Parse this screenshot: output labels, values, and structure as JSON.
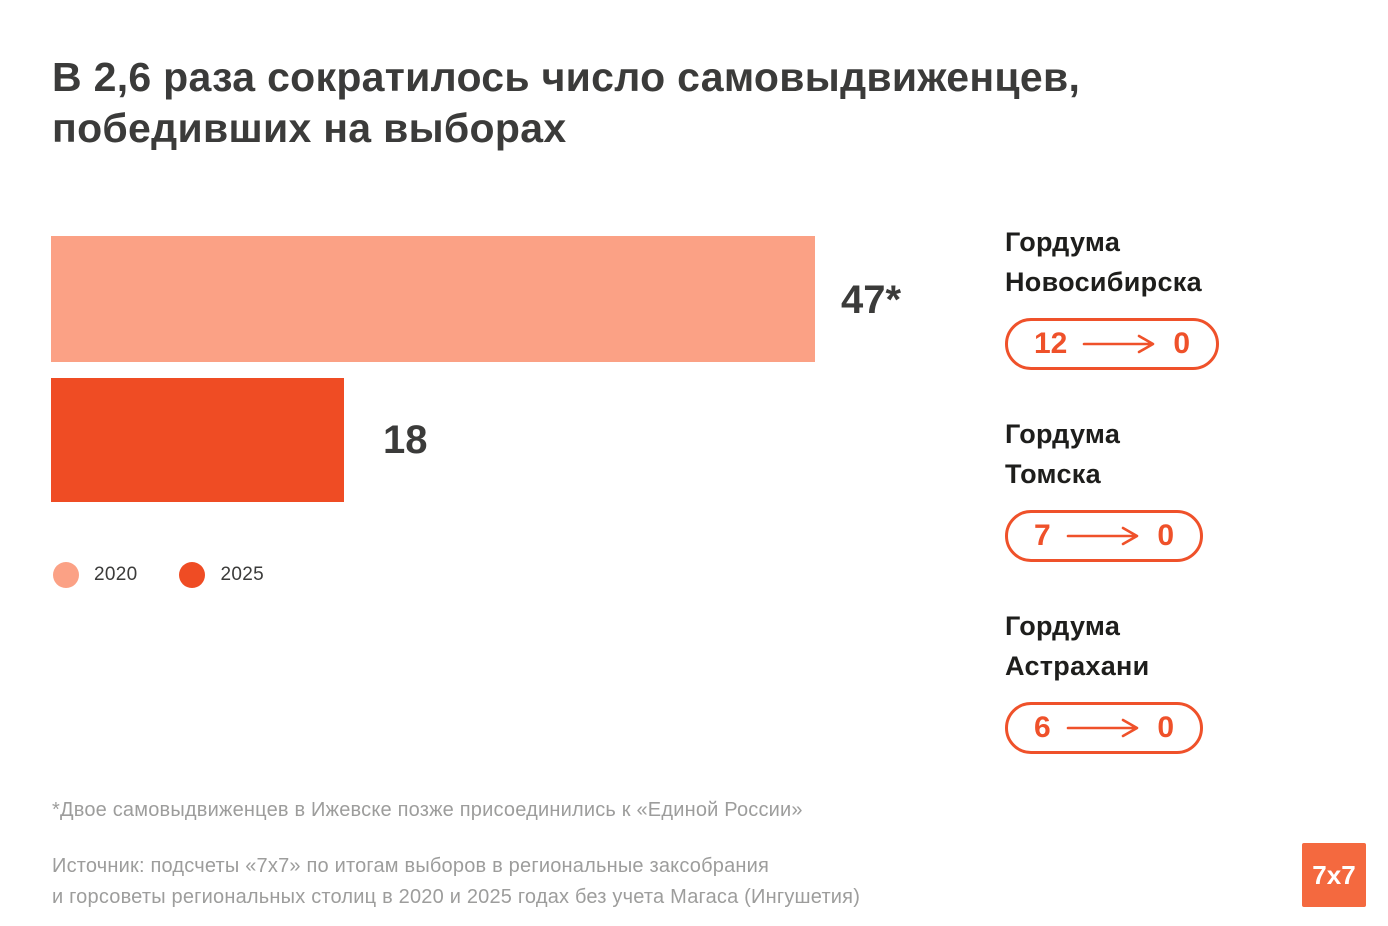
{
  "title": "В 2,6 раза сократилось число самовыдвиженцев, победивших на выборах",
  "chart_data": {
    "type": "bar",
    "orientation": "horizontal",
    "title": "В 2,6 раза сократилось число самовыдвиженцев, победивших на выборах",
    "categories": [
      "2020",
      "2025"
    ],
    "values": [
      47,
      18
    ],
    "value_labels": [
      "47*",
      "18"
    ],
    "series_colors": [
      "#fba185",
      "#ef4c24"
    ],
    "xlim": [
      0,
      47
    ],
    "grid": false,
    "legend_position": "bottom-left",
    "legend": [
      {
        "label": "2020",
        "color": "#fba185"
      },
      {
        "label": "2025",
        "color": "#ef4c24"
      }
    ],
    "annotations": [
      {
        "label": "Гордума Новосибирска",
        "from": 12,
        "to": 0
      },
      {
        "label": "Гордума Томска",
        "from": 7,
        "to": 0
      },
      {
        "label": "Гордума Астрахани",
        "from": 6,
        "to": 0
      }
    ]
  },
  "legend": {
    "items": [
      {
        "label": "2020",
        "color": "#fba185"
      },
      {
        "label": "2025",
        "color": "#ef4c24"
      }
    ]
  },
  "cities": [
    {
      "name_line1": "Гордума",
      "name_line2": "Новосибирска",
      "from": "12",
      "to": "0"
    },
    {
      "name_line1": "Гордума",
      "name_line2": "Томска",
      "from": "7",
      "to": "0"
    },
    {
      "name_line1": "Гордума",
      "name_line2": "Астрахани",
      "from": "6",
      "to": "0"
    }
  ],
  "footnote": "*Двое самовыдвиженцев в Ижевске позже присоединились к «Единой России»",
  "source_line1": "Источник: подсчеты «7х7» по итогам выборов в региональные заксобрания",
  "source_line2": "и горсоветы региональных столиц в 2020 и 2025 годах без учета Магаса (Ингушетия)",
  "logo_text": "7х7",
  "colors": {
    "bar_2020": "#fba185",
    "bar_2025": "#ef4c24",
    "accent_outline": "#ef512a",
    "logo_bg": "#f4693f",
    "text_dark": "#3b3b3a",
    "text_gray": "#9d9d9c",
    "background": "#ffffff"
  }
}
